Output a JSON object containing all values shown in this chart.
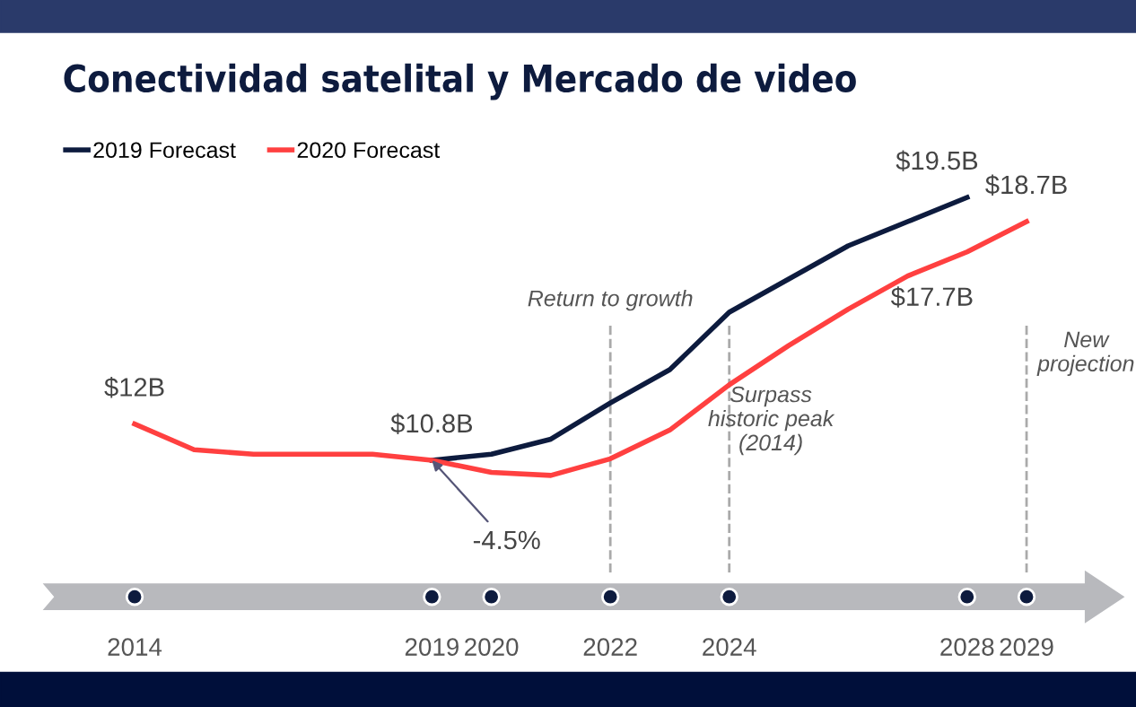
{
  "chart_data": {
    "type": "line",
    "title": "Conectividad satelital y Mercado de video",
    "x": [
      2014,
      2015,
      2016,
      2017,
      2018,
      2019,
      2020,
      2021,
      2022,
      2023,
      2024,
      2025,
      2026,
      2027,
      2028,
      2029
    ],
    "series": [
      {
        "name": "2019 Forecast",
        "color": "#0d1b3e",
        "values": [
          null,
          null,
          null,
          null,
          null,
          10.8,
          11.0,
          11.5,
          12.7,
          13.8,
          15.7,
          16.8,
          17.9,
          18.7,
          19.5,
          null
        ],
        "value_labels": [
          null,
          null,
          null,
          null,
          null,
          null,
          null,
          null,
          null,
          null,
          null,
          null,
          null,
          null,
          "$19.5B",
          null
        ]
      },
      {
        "name": "2020 Forecast",
        "color": "#ff4040",
        "values": [
          12.0,
          11.15,
          11.0,
          11.0,
          11.0,
          10.8,
          10.4,
          10.3,
          10.85,
          11.8,
          13.3,
          14.6,
          15.8,
          16.9,
          17.7,
          18.7
        ],
        "value_labels": [
          "$12B",
          null,
          null,
          null,
          null,
          "$10.8B",
          null,
          null,
          null,
          null,
          null,
          null,
          null,
          null,
          "$17.7B",
          "$18.7B"
        ]
      }
    ],
    "xlim": [
      2012.5,
      2030
    ],
    "xticks": [
      2014,
      2019,
      2020,
      2022,
      2024,
      2028,
      2029
    ],
    "tick_labels": "x",
    "grid": false,
    "legend": "top left",
    "marker": "none",
    "line_style": "solid",
    "ref_lines": [
      {
        "axis": "x",
        "value": 2022,
        "label": "Return to growth",
        "color": "#aaaaaa",
        "line_style": "dashed"
      },
      {
        "axis": "x",
        "value": 2024,
        "label": "Surpass\nhistoric peak\n(2014)",
        "color": "#aaaaaa",
        "line_style": "dashed"
      },
      {
        "axis": "x",
        "value": 2029,
        "label": "New\nprojection",
        "color": "#aaaaaa",
        "line_style": "dashed"
      }
    ],
    "annotations": [
      {
        "text": "-4.5%",
        "x": 2019,
        "y": 10.8
      }
    ]
  }
}
